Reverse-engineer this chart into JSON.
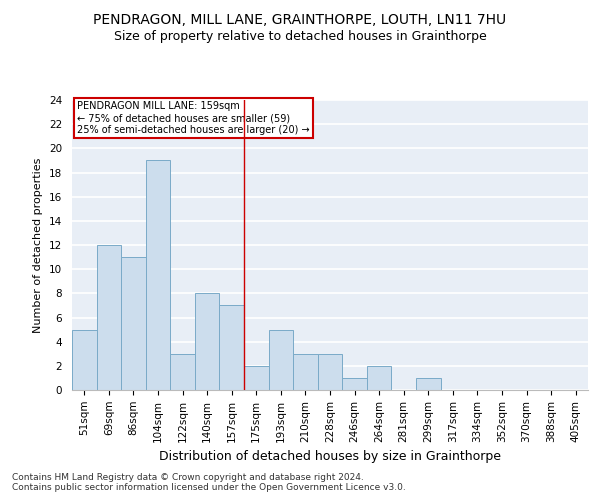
{
  "title1": "PENDRAGON, MILL LANE, GRAINTHORPE, LOUTH, LN11 7HU",
  "title2": "Size of property relative to detached houses in Grainthorpe",
  "xlabel": "Distribution of detached houses by size in Grainthorpe",
  "ylabel": "Number of detached properties",
  "categories": [
    "51sqm",
    "69sqm",
    "86sqm",
    "104sqm",
    "122sqm",
    "140sqm",
    "157sqm",
    "175sqm",
    "193sqm",
    "210sqm",
    "228sqm",
    "246sqm",
    "264sqm",
    "281sqm",
    "299sqm",
    "317sqm",
    "334sqm",
    "352sqm",
    "370sqm",
    "388sqm",
    "405sqm"
  ],
  "values": [
    5,
    12,
    11,
    19,
    3,
    8,
    7,
    2,
    5,
    3,
    3,
    1,
    2,
    0,
    1,
    0,
    0,
    0,
    0,
    0,
    0
  ],
  "bar_color": "#ccdded",
  "bar_edge_color": "#7aaac8",
  "bg_color": "#e8eef6",
  "grid_color": "#ffffff",
  "vline_color": "#cc0000",
  "annotation_text": "PENDRAGON MILL LANE: 159sqm\n← 75% of detached houses are smaller (59)\n25% of semi-detached houses are larger (20) →",
  "annotation_box_color": "#cc0000",
  "ylim": [
    0,
    24
  ],
  "yticks": [
    0,
    2,
    4,
    6,
    8,
    10,
    12,
    14,
    16,
    18,
    20,
    22,
    24
  ],
  "footer": "Contains HM Land Registry data © Crown copyright and database right 2024.\nContains public sector information licensed under the Open Government Licence v3.0.",
  "title1_fontsize": 10,
  "title2_fontsize": 9,
  "xlabel_fontsize": 9,
  "ylabel_fontsize": 8,
  "tick_fontsize": 7.5,
  "footer_fontsize": 6.5
}
